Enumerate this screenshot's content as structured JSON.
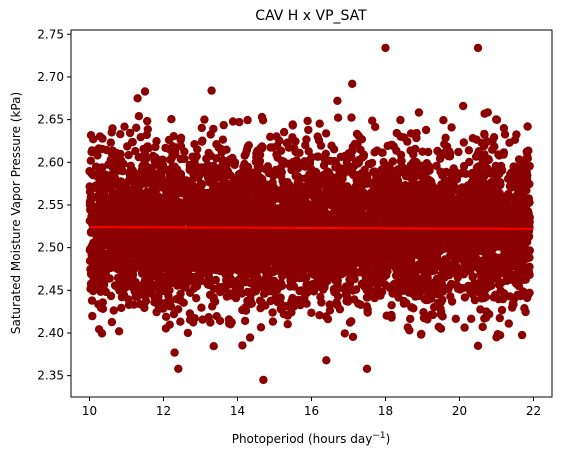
{
  "chart_data": {
    "type": "scatter",
    "title": "CAV H x VP_SAT",
    "xlabel": "Photoperiod (hours day",
    "xlabel_sup": "−1",
    "xlabel_end": ")",
    "ylabel": "Saturated Moisture Vapor Pressure (kPa)",
    "xlim": [
      9.5,
      22.5
    ],
    "ylim": [
      2.325,
      2.755
    ],
    "xticks": [
      10,
      12,
      14,
      16,
      18,
      20,
      22
    ],
    "yticks": [
      2.35,
      2.4,
      2.45,
      2.5,
      2.55,
      2.6,
      2.65,
      2.7,
      2.75
    ],
    "colors": {
      "points": "#8b0000",
      "trend": "#ff0000"
    },
    "trend_line": {
      "x": [
        10.0,
        22.0
      ],
      "y": [
        2.524,
        2.522
      ]
    },
    "cloud": {
      "x_range": [
        10.0,
        21.9
      ],
      "y_center": 2.524,
      "y_spread": 0.045,
      "count": 6000
    },
    "outliers": [
      {
        "x": 18.0,
        "y": 2.734
      },
      {
        "x": 20.5,
        "y": 2.734
      },
      {
        "x": 17.1,
        "y": 2.692
      },
      {
        "x": 11.5,
        "y": 2.683
      },
      {
        "x": 11.3,
        "y": 2.675
      },
      {
        "x": 16.7,
        "y": 2.672
      },
      {
        "x": 13.3,
        "y": 2.684
      },
      {
        "x": 14.7,
        "y": 2.345
      },
      {
        "x": 12.4,
        "y": 2.358
      },
      {
        "x": 17.5,
        "y": 2.358
      },
      {
        "x": 12.3,
        "y": 2.377
      },
      {
        "x": 16.4,
        "y": 2.368
      },
      {
        "x": 20.5,
        "y": 2.385
      },
      {
        "x": 10.8,
        "y": 2.402
      },
      {
        "x": 21.0,
        "y": 2.395
      },
      {
        "x": 19.5,
        "y": 2.405
      },
      {
        "x": 10.1,
        "y": 2.627
      },
      {
        "x": 10.6,
        "y": 2.635
      },
      {
        "x": 21.2,
        "y": 2.64
      },
      {
        "x": 20.1,
        "y": 2.666
      }
    ]
  }
}
